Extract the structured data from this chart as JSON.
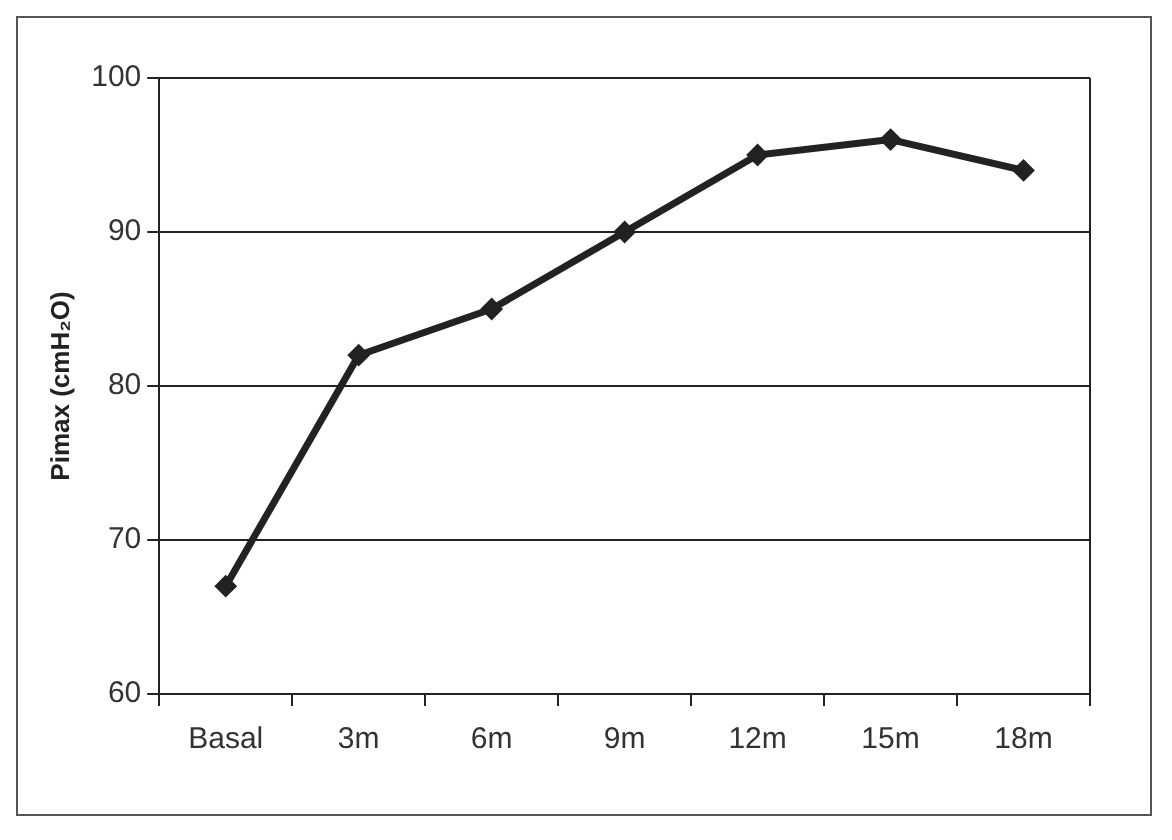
{
  "chart_data": {
    "type": "line",
    "ylabel": "Pimax (cmH₂O)",
    "categories": [
      "Basal",
      "3m",
      "6m",
      "9m",
      "12m",
      "15m",
      "18m"
    ],
    "series": [
      {
        "color": "#222222",
        "values": [
          67,
          82,
          85,
          90,
          95,
          96,
          94
        ]
      }
    ],
    "ylim": [
      60,
      100
    ],
    "yticks": [
      60,
      70,
      80,
      90,
      100
    ],
    "grid": "y",
    "marker": "diamond",
    "line_style": "solid",
    "legend": false
  }
}
